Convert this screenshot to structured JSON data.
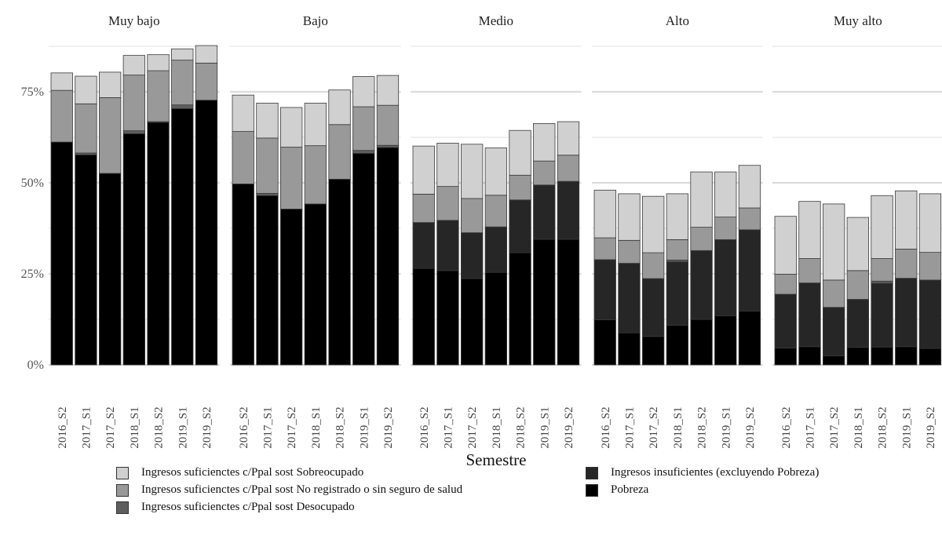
{
  "chart_data": {
    "type": "bar",
    "stacked": true,
    "xlabel": "Semestre",
    "ylabel": "",
    "ylim": [
      0,
      92
    ],
    "y_ticks": [
      0,
      25,
      50,
      75
    ],
    "y_tick_labels": [
      "0%",
      "25%",
      "50%",
      "75%"
    ],
    "grid": true,
    "legend_position": "bottom",
    "categories": [
      "2016_S2",
      "2017_S1",
      "2017_S2",
      "2018_S1",
      "2018_S2",
      "2019_S1",
      "2019_S2"
    ],
    "series_order": [
      "Pobreza",
      "Ingresos insuficientes (excluyendo Pobreza)",
      "Ingresos suficienctes c/Ppal sost Desocupado",
      "Ingresos suficienctes c/Ppal sost No registrado o sin seguro de salud",
      "Ingresos suficienctes c/Ppal sost Sobreocupado"
    ],
    "series_colors": {
      "Pobreza": "#000000",
      "Ingresos insuficientes (excluyendo Pobreza)": "#262626",
      "Ingresos suficienctes c/Ppal sost Desocupado": "#5e5e5e",
      "Ingresos suficienctes c/Ppal sost No registrado o sin seguro de salud": "#999999",
      "Ingresos suficienctes c/Ppal sost Sobreocupado": "#d0d0d0"
    },
    "panels": [
      {
        "name": "Muy bajo",
        "series": [
          {
            "name": "Pobreza",
            "values": [
              61.2,
              57.7,
              52.6,
              63.5,
              66.6,
              70.4,
              72.7
            ]
          },
          {
            "name": "Ingresos insuficientes (excluyendo Pobreza)",
            "values": [
              0,
              0,
              0,
              0,
              0,
              0,
              0
            ]
          },
          {
            "name": "Ingresos suficienctes c/Ppal sost Desocupado",
            "values": [
              0,
              0.5,
              0,
              0.8,
              0.2,
              1.0,
              0
            ]
          },
          {
            "name": "Ingresos suficienctes c/Ppal sost No registrado o sin seguro de salud",
            "values": [
              14.2,
              13.5,
              20.8,
              15.3,
              14.0,
              12.3,
              10.2
            ]
          },
          {
            "name": "Ingresos suficienctes c/Ppal sost Sobreocupado",
            "values": [
              4.8,
              7.6,
              7.0,
              5.4,
              4.4,
              3.1,
              4.8
            ]
          }
        ]
      },
      {
        "name": "Bajo",
        "series": [
          {
            "name": "Pobreza",
            "values": [
              49.7,
              46.5,
              42.8,
              44.2,
              51.0,
              58.1,
              59.7
            ]
          },
          {
            "name": "Ingresos insuficientes (excluyendo Pobreza)",
            "values": [
              0,
              0,
              0,
              0,
              0,
              0,
              0
            ]
          },
          {
            "name": "Ingresos suficienctes c/Ppal sost Desocupado",
            "values": [
              0,
              0.6,
              0,
              0,
              0,
              0.8,
              0.6
            ]
          },
          {
            "name": "Ingresos suficienctes c/Ppal sost No registrado o sin seguro de salud",
            "values": [
              14.4,
              15.2,
              17.0,
              16.0,
              15.0,
              12.0,
              11.0
            ]
          },
          {
            "name": "Ingresos suficienctes c/Ppal sost Sobreocupado",
            "values": [
              10.0,
              9.6,
              10.9,
              11.7,
              9.5,
              8.3,
              8.2
            ]
          }
        ]
      },
      {
        "name": "Medio",
        "series": [
          {
            "name": "Pobreza",
            "values": [
              26.5,
              25.9,
              23.7,
              25.4,
              30.8,
              34.5,
              34.5
            ]
          },
          {
            "name": "Ingresos insuficientes (excluyendo Pobreza)",
            "values": [
              12.6,
              13.8,
              12.6,
              12.5,
              14.5,
              14.9,
              15.9
            ]
          },
          {
            "name": "Ingresos suficienctes c/Ppal sost Desocupado",
            "values": [
              0,
              0,
              0,
              0,
              0,
              0,
              0
            ]
          },
          {
            "name": "Ingresos suficienctes c/Ppal sost No registrado o sin seguro de salud",
            "values": [
              7.8,
              9.3,
              9.4,
              8.7,
              6.8,
              6.6,
              7.2
            ]
          },
          {
            "name": "Ingresos suficienctes c/Ppal sost Sobreocupado",
            "values": [
              13.2,
              11.9,
              14.9,
              13.0,
              12.3,
              10.3,
              9.2
            ]
          }
        ]
      },
      {
        "name": "Alto",
        "series": [
          {
            "name": "Pobreza",
            "values": [
              12.4,
              8.8,
              7.8,
              10.9,
              12.5,
              13.5,
              14.8
            ]
          },
          {
            "name": "Ingresos insuficientes (excluyendo Pobreza)",
            "values": [
              16.5,
              19.1,
              15.9,
              17.4,
              18.9,
              20.9,
              22.3
            ]
          },
          {
            "name": "Ingresos suficienctes c/Ppal sost Desocupado",
            "values": [
              0,
              0,
              0,
              0.5,
              0,
              0,
              0
            ]
          },
          {
            "name": "Ingresos suficienctes c/Ppal sost No registrado o sin seguro de salud",
            "values": [
              6.0,
              6.3,
              7.1,
              5.6,
              6.4,
              6.2,
              6.0
            ]
          },
          {
            "name": "Ingresos suficienctes c/Ppal sost Sobreocupado",
            "values": [
              13.1,
              12.8,
              15.5,
              12.6,
              15.2,
              12.4,
              11.7
            ]
          }
        ]
      },
      {
        "name": "Muy alto",
        "series": [
          {
            "name": "Pobreza",
            "values": [
              4.6,
              5.0,
              2.5,
              4.8,
              4.9,
              5.0,
              4.5
            ]
          },
          {
            "name": "Ingresos insuficientes (excluyendo Pobreza)",
            "values": [
              14.8,
              17.5,
              13.3,
              13.2,
              17.5,
              18.8,
              18.8
            ]
          },
          {
            "name": "Ingresos suficienctes c/Ppal sost Desocupado",
            "values": [
              0,
              0,
              0,
              0,
              0.6,
              0,
              0
            ]
          },
          {
            "name": "Ingresos suficienctes c/Ppal sost No registrado o sin seguro de salud",
            "values": [
              5.5,
              6.7,
              7.5,
              7.9,
              6.2,
              8.0,
              7.6
            ]
          },
          {
            "name": "Ingresos suficienctes c/Ppal sost Sobreocupado",
            "values": [
              15.9,
              15.7,
              20.9,
              14.6,
              17.3,
              16.0,
              16.1
            ]
          }
        ]
      }
    ]
  },
  "legend": {
    "items": [
      {
        "label": "Ingresos suficienctes c/Ppal sost Sobreocupado",
        "color": "#d0d0d0"
      },
      {
        "label": "Ingresos suficienctes c/Ppal sost No registrado o sin seguro de salud",
        "color": "#999999"
      },
      {
        "label": "Ingresos suficienctes c/Ppal sost Desocupado",
        "color": "#5e5e5e"
      },
      {
        "label": "Ingresos insuficientes (excluyendo Pobreza)",
        "color": "#262626"
      },
      {
        "label": "Pobreza",
        "color": "#000000"
      }
    ]
  }
}
